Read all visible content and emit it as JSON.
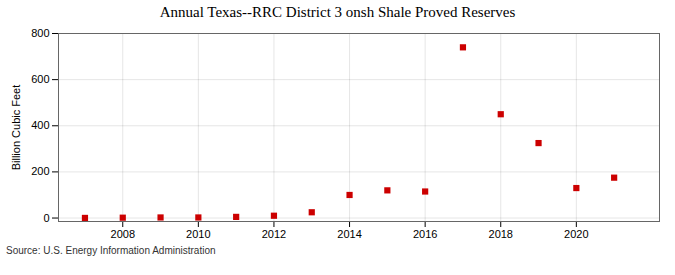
{
  "chart_data": {
    "type": "scatter",
    "title": "Annual Texas--RRC District 3 onsh Shale Proved Reserves",
    "ylabel": "Billion Cubic Feet",
    "source": "Source: U.S. Energy Information Administration",
    "x": [
      2007,
      2008,
      2009,
      2010,
      2011,
      2012,
      2013,
      2014,
      2015,
      2016,
      2017,
      2018,
      2019,
      2020,
      2021
    ],
    "values": [
      0.5,
      1.5,
      2.5,
      2.5,
      5,
      10,
      25,
      100,
      120,
      115,
      740,
      450,
      325,
      130,
      175
    ],
    "color": "#cc0000",
    "marker": "square",
    "xlim": [
      2006.3,
      2022.2
    ],
    "xticks": [
      2008,
      2010,
      2012,
      2014,
      2016,
      2018,
      2020
    ],
    "ylim": [
      -15,
      800
    ],
    "yticks": [
      0,
      200,
      400,
      600,
      800
    ],
    "grid": true
  }
}
